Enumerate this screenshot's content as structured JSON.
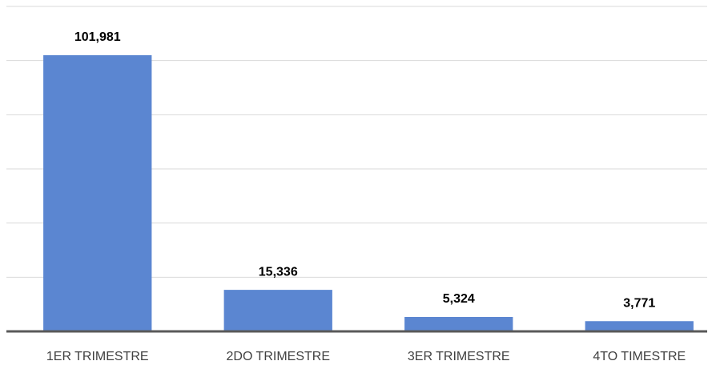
{
  "chart_data": {
    "type": "bar",
    "categories": [
      "1ER TRIMESTRE",
      "2DO TRIMESTRE",
      "3ER TRIMESTRE",
      "4TO TIMESTRE"
    ],
    "values": [
      101981,
      15336,
      5324,
      3771
    ],
    "value_labels": [
      "101,981",
      "15,336",
      "5,324",
      "3,771"
    ],
    "color": "#5b86d1",
    "ylim": [
      0,
      120000
    ],
    "yticks": [
      0,
      20000,
      40000,
      60000,
      80000,
      100000,
      120000
    ],
    "grid": true
  }
}
